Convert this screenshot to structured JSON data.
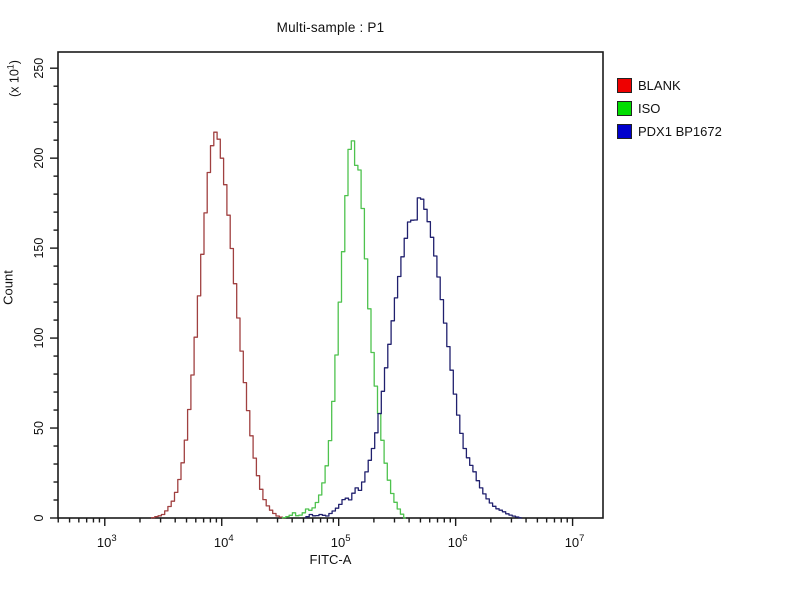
{
  "chart_data": {
    "type": "line",
    "subtype": "flow-cytometry-overlay-histogram",
    "title": "Multi-sample : P1",
    "xlabel": "FITC-A",
    "ylabel": "Count",
    "y_axis_multiplier": {
      "prefix": "(x 10",
      "exponent": "1",
      "suffix": ")"
    },
    "x_scale": "log",
    "x_log_range": [
      2.6,
      7.26
    ],
    "x_major_ticks_exponents": [
      3,
      4,
      5,
      6,
      7
    ],
    "ylim": [
      0,
      259
    ],
    "y_major_ticks": [
      0,
      50,
      100,
      150,
      200,
      250
    ],
    "y_minor_step": 10,
    "grid": false,
    "legend_position": "right",
    "axis_color": "#1a1a1a",
    "background": "#ffffff",
    "series": [
      {
        "name": "BLANK",
        "legend_color": "#ee0000",
        "line_color": "#a04040",
        "peak": {
          "x_log": 3.94,
          "count": 215
        },
        "points": [
          [
            3.4,
            0
          ],
          [
            3.46,
            1
          ],
          [
            3.5,
            2
          ],
          [
            3.54,
            5
          ],
          [
            3.58,
            9
          ],
          [
            3.62,
            16
          ],
          [
            3.66,
            28
          ],
          [
            3.7,
            46
          ],
          [
            3.74,
            72
          ],
          [
            3.78,
            102
          ],
          [
            3.82,
            135
          ],
          [
            3.86,
            168
          ],
          [
            3.89,
            192
          ],
          [
            3.92,
            208
          ],
          [
            3.94,
            215
          ],
          [
            3.97,
            212
          ],
          [
            4.0,
            201
          ],
          [
            4.04,
            180
          ],
          [
            4.08,
            154
          ],
          [
            4.12,
            126
          ],
          [
            4.16,
            99
          ],
          [
            4.2,
            74
          ],
          [
            4.24,
            52
          ],
          [
            4.28,
            34
          ],
          [
            4.32,
            20
          ],
          [
            4.36,
            11
          ],
          [
            4.4,
            6
          ],
          [
            4.44,
            3
          ],
          [
            4.48,
            1
          ],
          [
            4.53,
            0
          ]
        ]
      },
      {
        "name": "ISO",
        "legend_color": "#00dd00",
        "line_color": "#4ec24e",
        "peak": {
          "x_log": 5.11,
          "count": 215
        },
        "points": [
          [
            4.52,
            0
          ],
          [
            4.58,
            1
          ],
          [
            4.62,
            3
          ],
          [
            4.65,
            1
          ],
          [
            4.69,
            2
          ],
          [
            4.73,
            5
          ],
          [
            4.77,
            4
          ],
          [
            4.81,
            8
          ],
          [
            4.85,
            14
          ],
          [
            4.89,
            25
          ],
          [
            4.93,
            45
          ],
          [
            4.97,
            78
          ],
          [
            5.01,
            120
          ],
          [
            5.05,
            160
          ],
          [
            5.08,
            196
          ],
          [
            5.11,
            215
          ],
          [
            5.13,
            206
          ],
          [
            5.15,
            196
          ],
          [
            5.17,
            199
          ],
          [
            5.2,
            178
          ],
          [
            5.23,
            148
          ],
          [
            5.26,
            118
          ],
          [
            5.29,
            92
          ],
          [
            5.32,
            72
          ],
          [
            5.35,
            56
          ],
          [
            5.38,
            40
          ],
          [
            5.41,
            27
          ],
          [
            5.45,
            15
          ],
          [
            5.49,
            8
          ],
          [
            5.53,
            3
          ],
          [
            5.57,
            0
          ]
        ]
      },
      {
        "name": "PDX1 BP1672",
        "legend_color": "#0000cc",
        "line_color": "#20206e",
        "peak": {
          "x_log": 5.7,
          "count": 180
        },
        "points": [
          [
            4.72,
            0
          ],
          [
            4.76,
            2
          ],
          [
            4.8,
            1
          ],
          [
            4.85,
            2
          ],
          [
            4.9,
            1
          ],
          [
            4.94,
            3
          ],
          [
            4.98,
            5
          ],
          [
            5.02,
            8
          ],
          [
            5.06,
            12
          ],
          [
            5.09,
            9
          ],
          [
            5.12,
            13
          ],
          [
            5.15,
            17
          ],
          [
            5.18,
            15
          ],
          [
            5.21,
            20
          ],
          [
            5.24,
            26
          ],
          [
            5.27,
            33
          ],
          [
            5.3,
            40
          ],
          [
            5.33,
            50
          ],
          [
            5.36,
            62
          ],
          [
            5.39,
            76
          ],
          [
            5.42,
            90
          ],
          [
            5.45,
            104
          ],
          [
            5.48,
            118
          ],
          [
            5.51,
            131
          ],
          [
            5.54,
            143
          ],
          [
            5.57,
            154
          ],
          [
            5.6,
            165
          ],
          [
            5.62,
            160
          ],
          [
            5.64,
            171
          ],
          [
            5.66,
            165
          ],
          [
            5.68,
            177
          ],
          [
            5.7,
            180
          ],
          [
            5.72,
            176
          ],
          [
            5.75,
            170
          ],
          [
            5.78,
            162
          ],
          [
            5.81,
            152
          ],
          [
            5.84,
            140
          ],
          [
            5.87,
            127
          ],
          [
            5.9,
            113
          ],
          [
            5.93,
            99
          ],
          [
            5.96,
            85
          ],
          [
            6.0,
            66
          ],
          [
            6.04,
            50
          ],
          [
            6.08,
            38
          ],
          [
            6.12,
            31
          ],
          [
            6.16,
            26
          ],
          [
            6.2,
            19
          ],
          [
            6.24,
            14
          ],
          [
            6.28,
            10
          ],
          [
            6.32,
            7
          ],
          [
            6.36,
            5
          ],
          [
            6.4,
            4
          ],
          [
            6.45,
            2
          ],
          [
            6.5,
            1
          ],
          [
            6.56,
            0
          ]
        ]
      }
    ]
  }
}
